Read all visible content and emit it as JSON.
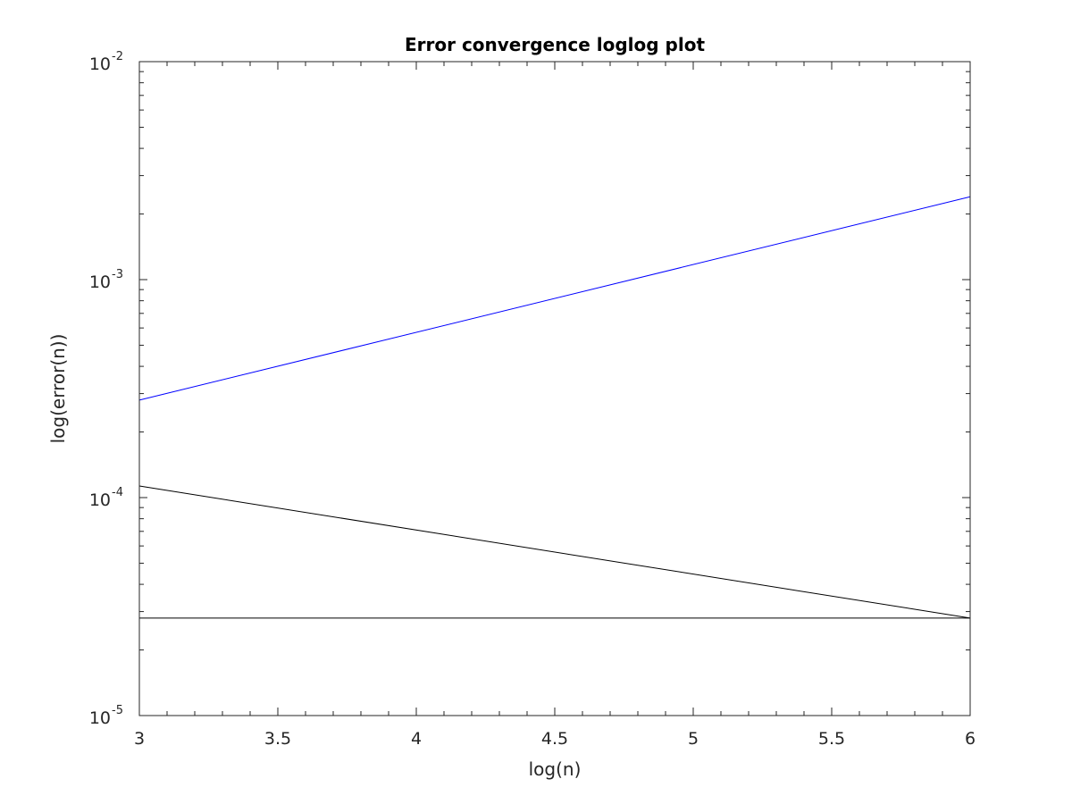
{
  "chart_data": {
    "type": "line",
    "title": "Error convergence loglog plot",
    "xlabel": "log(n)",
    "ylabel": "log(error(n))",
    "xlim": [
      3,
      6
    ],
    "ylim": [
      1e-05,
      0.01
    ],
    "yscale": "log",
    "grid": false,
    "x_ticks": [
      3,
      3.5,
      4,
      4.5,
      5,
      5.5,
      6
    ],
    "x_tick_labels": [
      "3",
      "3.5",
      "4",
      "4.5",
      "5",
      "5.5",
      "6"
    ],
    "y_tick_labels": [
      {
        "value": 1e-05,
        "base": "10",
        "exp": "-5"
      },
      {
        "value": 0.0001,
        "base": "10",
        "exp": "-4"
      },
      {
        "value": 0.001,
        "base": "10",
        "exp": "-3"
      },
      {
        "value": 0.01,
        "base": "10",
        "exp": "-2"
      }
    ],
    "series": [
      {
        "color": "#0000ff",
        "x": [
          3,
          6
        ],
        "y": [
          0.00028,
          0.0024
        ]
      },
      {
        "color": "#000000",
        "x": [
          3,
          6
        ],
        "y": [
          0.000113,
          2.8e-05
        ]
      },
      {
        "color": "#000000",
        "x": [
          3,
          6
        ],
        "y": [
          2.8e-05,
          2.8e-05
        ]
      }
    ]
  }
}
